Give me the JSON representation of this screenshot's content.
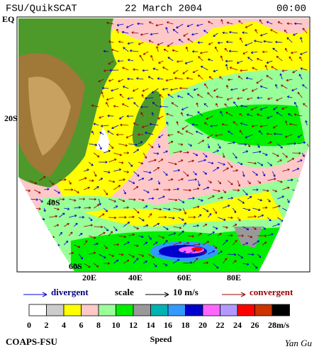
{
  "header": {
    "source": "FSU/QuikSCAT",
    "date": "22 March 2004",
    "time": "00:00"
  },
  "map": {
    "lat_labels": [
      "EQ",
      "20S",
      "40S",
      "60S"
    ],
    "lon_labels": [
      "20E",
      "40E",
      "60E",
      "80E"
    ]
  },
  "legend": {
    "divergent": "divergent",
    "scale": "scale",
    "scale_value": "10 m/s",
    "convergent": "convergent"
  },
  "colorbar": {
    "ticks": [
      0,
      2,
      4,
      6,
      8,
      10,
      12,
      14,
      16,
      18,
      20,
      22,
      24,
      26,
      28
    ],
    "unit": "m/s",
    "colors": [
      "#ffffff",
      "#cccccc",
      "#ffff00",
      "#ffc8c8",
      "#99ff99",
      "#00ee00",
      "#999999",
      "#00b3b3",
      "#3399ff",
      "#0000cc",
      "#ff66ff",
      "#b399ff",
      "#ff0000",
      "#cc3300",
      "#000000"
    ]
  },
  "footer": {
    "left": "COAPS-FSU",
    "center": "Speed",
    "right": "Yan Gu"
  }
}
